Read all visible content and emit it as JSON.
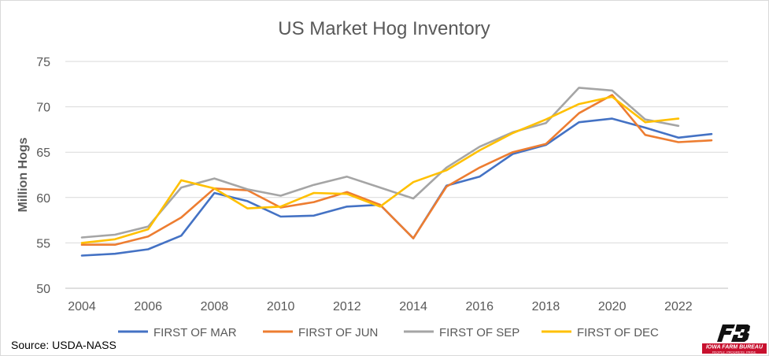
{
  "chart_data": {
    "type": "line",
    "title": "US Market Hog Inventory",
    "ylabel": "Million Hogs",
    "xlabel": "",
    "ylim": [
      50,
      75
    ],
    "yticks": [
      50,
      55,
      60,
      65,
      70,
      75
    ],
    "xlim": [
      2004,
      2023
    ],
    "xticks": [
      2004,
      2006,
      2008,
      2010,
      2012,
      2014,
      2016,
      2018,
      2020,
      2022
    ],
    "grid": true,
    "legend_position": "bottom",
    "series": [
      {
        "name": "FIRST OF MAR",
        "color": "#4472c4",
        "x": [
          2004,
          2005,
          2006,
          2007,
          2008,
          2009,
          2010,
          2011,
          2012,
          2013,
          2014,
          2015,
          2016,
          2017,
          2018,
          2019,
          2020,
          2021,
          2022,
          2023
        ],
        "values": [
          53.6,
          53.8,
          54.3,
          55.8,
          60.5,
          59.6,
          57.9,
          58.0,
          59.0,
          59.2,
          55.5,
          61.3,
          62.3,
          64.8,
          65.8,
          68.3,
          68.7,
          67.7,
          66.6,
          67.0
        ]
      },
      {
        "name": "FIRST OF JUN",
        "color": "#ed7d31",
        "x": [
          2004,
          2005,
          2006,
          2007,
          2008,
          2009,
          2010,
          2011,
          2012,
          2013,
          2014,
          2015,
          2016,
          2017,
          2018,
          2019,
          2020,
          2021,
          2022,
          2023
        ],
        "values": [
          54.8,
          54.8,
          55.7,
          57.8,
          61.0,
          60.8,
          58.9,
          59.5,
          60.6,
          59.2,
          55.5,
          61.2,
          63.3,
          65.0,
          65.9,
          69.3,
          71.3,
          66.9,
          66.1,
          66.3
        ]
      },
      {
        "name": "FIRST OF SEP",
        "color": "#a5a5a5",
        "x": [
          2004,
          2005,
          2006,
          2007,
          2008,
          2009,
          2010,
          2011,
          2012,
          2013,
          2014,
          2015,
          2016,
          2017,
          2018,
          2019,
          2020,
          2021,
          2022
        ],
        "values": [
          55.6,
          55.9,
          56.8,
          61.1,
          62.1,
          60.9,
          60.2,
          61.4,
          62.3,
          61.1,
          59.9,
          63.3,
          65.6,
          67.2,
          68.2,
          72.1,
          71.8,
          68.6,
          67.9
        ]
      },
      {
        "name": "FIRST OF DEC",
        "color": "#ffc000",
        "x": [
          2004,
          2005,
          2006,
          2007,
          2008,
          2009,
          2010,
          2011,
          2012,
          2013,
          2014,
          2015,
          2016,
          2017,
          2018,
          2019,
          2020,
          2021,
          2022
        ],
        "values": [
          55.0,
          55.4,
          56.5,
          61.9,
          61.0,
          58.8,
          59.0,
          60.5,
          60.4,
          59.0,
          61.7,
          63.0,
          65.2,
          67.1,
          68.6,
          70.3,
          71.1,
          68.3,
          68.7
        ]
      }
    ]
  },
  "source": "Source: USDA-NASS",
  "logo": {
    "text_main": "IOWA FARM BUREAU",
    "text_tagline": "PEOPLE. PROGRESS. PRIDE.",
    "color": "#c8102e"
  }
}
